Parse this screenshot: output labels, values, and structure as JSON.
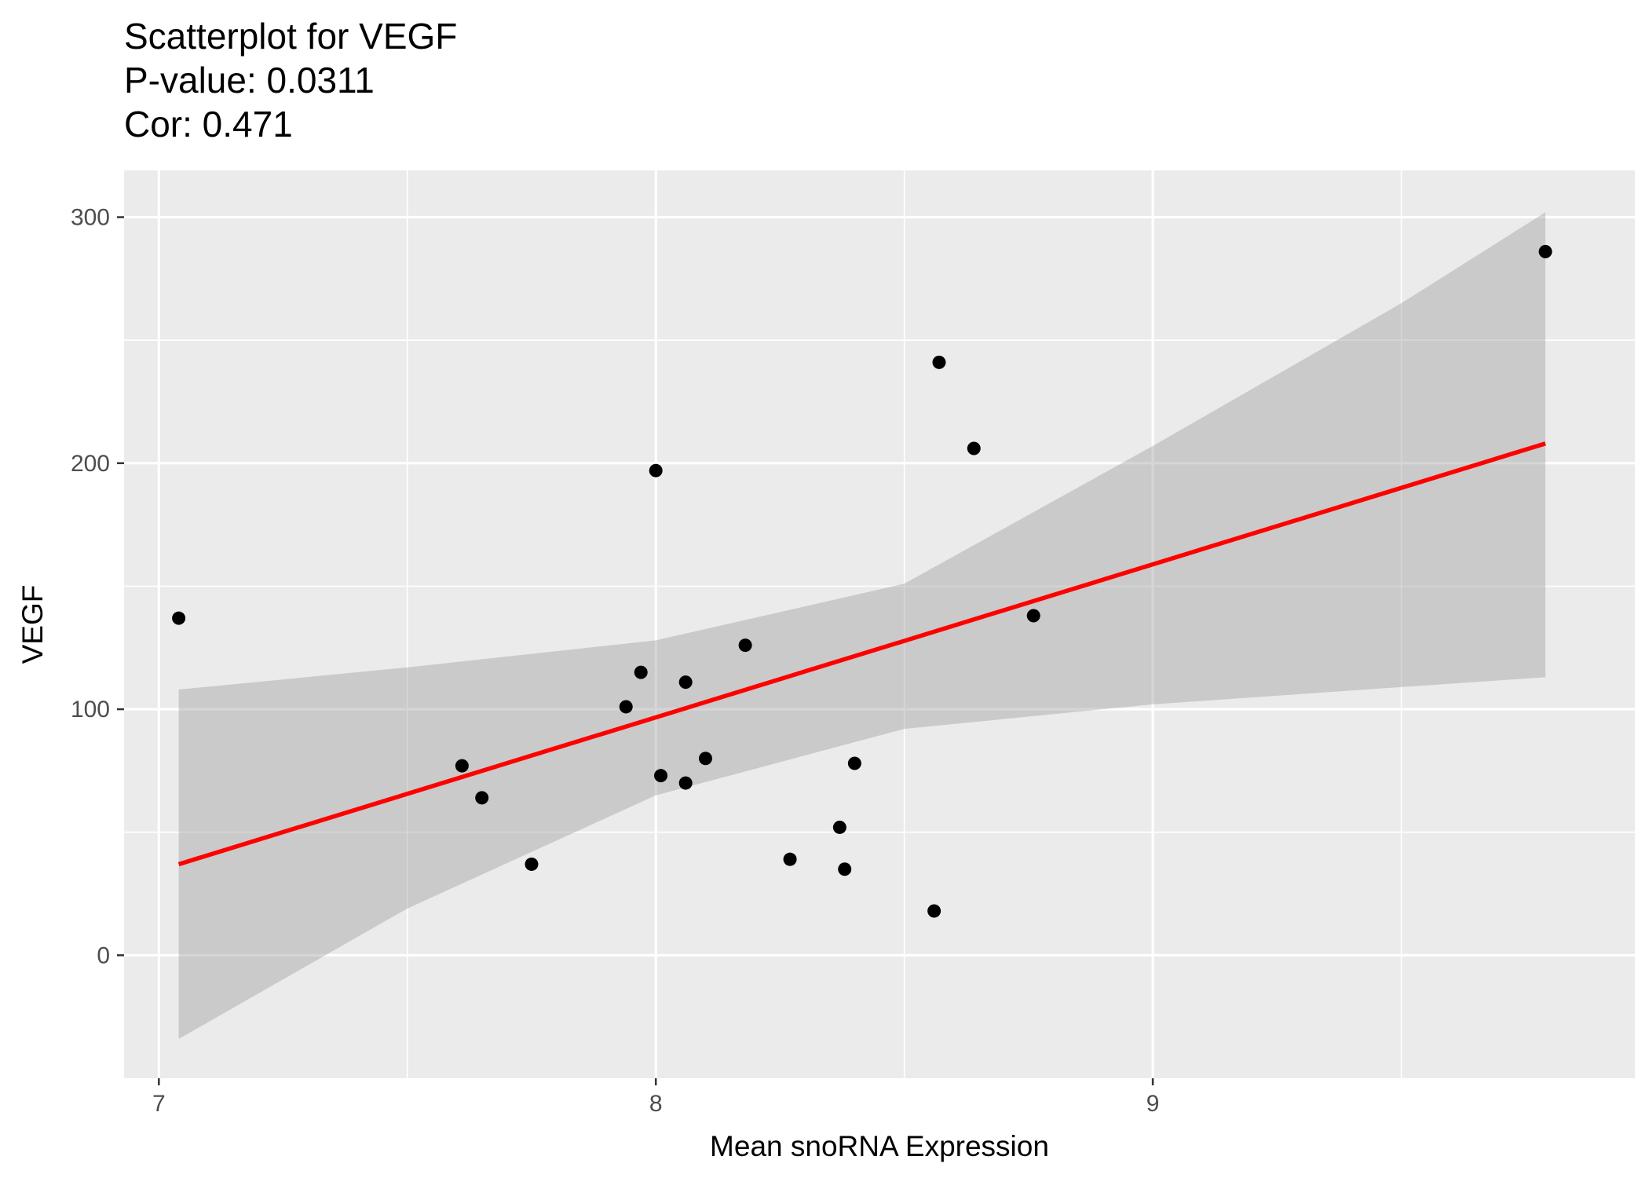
{
  "title_lines": [
    "Scatterplot for VEGF",
    "P-value: 0.0311",
    "Cor: 0.471"
  ],
  "chart_data": {
    "type": "scatter",
    "title": "Scatterplot for VEGF",
    "subtitle": [
      "P-value: 0.0311",
      "Cor: 0.471"
    ],
    "xlabel": "Mean snoRNA Expression",
    "ylabel": "VEGF",
    "xlim": [
      6.93,
      9.97
    ],
    "ylim": [
      -50,
      319
    ],
    "xticks": [
      7,
      8,
      9
    ],
    "yticks": [
      0,
      100,
      200,
      300
    ],
    "x_minor": [
      7.5,
      8.5,
      9.5
    ],
    "y_minor": [
      50,
      150,
      250
    ],
    "grid": true,
    "points": {
      "x": [
        7.04,
        7.61,
        7.65,
        7.75,
        7.94,
        7.97,
        8.0,
        8.01,
        8.06,
        8.06,
        8.1,
        8.18,
        8.27,
        8.37,
        8.38,
        8.4,
        8.56,
        8.57,
        8.64,
        8.76,
        9.79
      ],
      "y": [
        137,
        77,
        64,
        37,
        101,
        115,
        197,
        73,
        70,
        111,
        80,
        126,
        39,
        52,
        35,
        78,
        18,
        241,
        206,
        138,
        286
      ]
    },
    "fit_line": {
      "x": [
        7.04,
        9.79
      ],
      "y": [
        37,
        208
      ],
      "color": "#ff0000"
    },
    "confidence_band": {
      "x": [
        7.04,
        7.5,
        8.0,
        8.5,
        9.0,
        9.5,
        9.79
      ],
      "upper": [
        108,
        117,
        128,
        151,
        207,
        265,
        302
      ],
      "lower": [
        -34,
        19,
        65,
        92,
        102,
        109,
        113
      ],
      "color": "#999999"
    },
    "colors": {
      "panel": "#ebebeb",
      "grid": "#ffffff",
      "points": "#000000"
    }
  }
}
